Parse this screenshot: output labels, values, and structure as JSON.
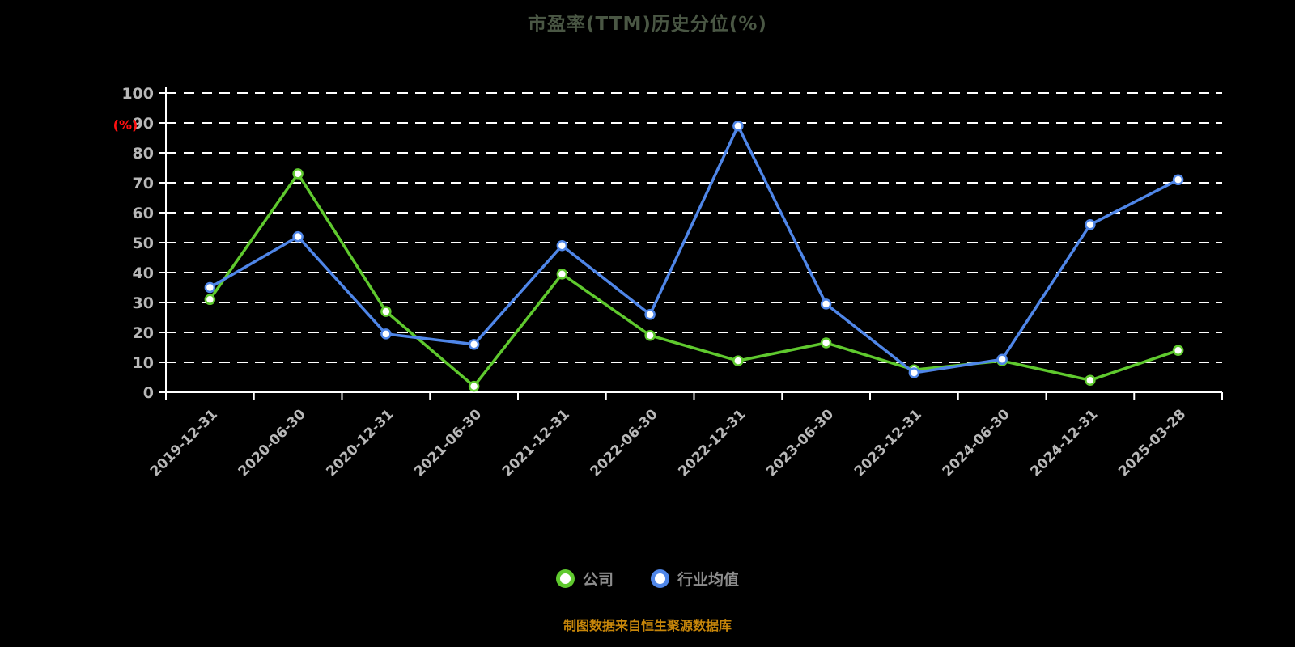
{
  "footer": "制图数据来自恒生聚源数据库",
  "colors": {
    "background": "#000000",
    "title": "#4a5744",
    "axis": "#ffffff",
    "tick_label": "#b8b8b8",
    "y_unit_label": "#ff1010",
    "legend_text": "#8c8c8c",
    "footer_text": "#c7860a",
    "company_series": "#5fc92e",
    "industry_series": "#4f86e8"
  },
  "chart_data": {
    "type": "line",
    "title": "市盈率(TTM)历史分位(%)",
    "xlabel": "",
    "ylabel": "(%)",
    "ylim": [
      0,
      100
    ],
    "yticks": [
      0,
      10,
      20,
      30,
      40,
      50,
      60,
      70,
      80,
      90,
      100
    ],
    "grid": true,
    "legend_position": "bottom",
    "categories": [
      "2019-12-31",
      "2020-06-30",
      "2020-12-31",
      "2021-06-30",
      "2021-12-31",
      "2022-06-30",
      "2022-12-31",
      "2023-06-30",
      "2023-12-31",
      "2024-06-30",
      "2024-12-31",
      "2025-03-28"
    ],
    "series": [
      {
        "name": "公司",
        "color": "#5fc92e",
        "values": [
          31,
          73,
          27,
          2,
          39.5,
          19,
          10.5,
          16.5,
          7.5,
          10.5,
          4,
          14
        ]
      },
      {
        "name": "行业均值",
        "color": "#4f86e8",
        "values": [
          35,
          52,
          19.5,
          16,
          49,
          26,
          89,
          29.5,
          6.5,
          11,
          56,
          71
        ]
      }
    ]
  }
}
